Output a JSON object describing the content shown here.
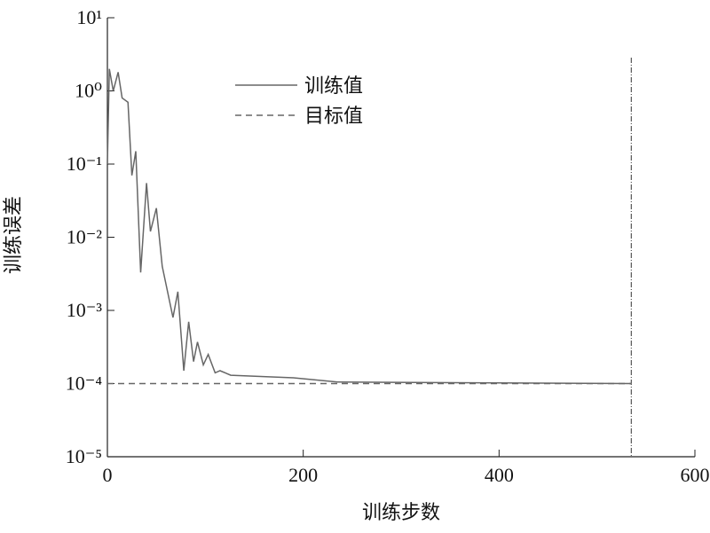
{
  "chart_data": {
    "type": "line",
    "xlabel": "训练步数",
    "ylabel": "训练误差",
    "xlim": [
      0,
      600
    ],
    "xticks": [
      0,
      200,
      400,
      600
    ],
    "ylim": [
      1e-05,
      10
    ],
    "yscale": "log",
    "yticks": [
      {
        "value": 10,
        "label": "10¹"
      },
      {
        "value": 1,
        "label": "10⁰"
      },
      {
        "value": 0.1,
        "label": "10⁻¹"
      },
      {
        "value": 0.01,
        "label": "10⁻²"
      },
      {
        "value": 0.001,
        "label": "10⁻³"
      },
      {
        "value": 0.0001,
        "label": "10⁻⁴"
      },
      {
        "value": 1e-05,
        "label": "10⁻⁵"
      }
    ],
    "legend": "upper center",
    "vlines": [
      535
    ],
    "series": [
      {
        "name": "训练值",
        "color": "#666666",
        "dash": "solid",
        "x": [
          0,
          2,
          6,
          11,
          15,
          21,
          25,
          29,
          34,
          40,
          44,
          50,
          56,
          67,
          72,
          78,
          83,
          88,
          92,
          98,
          103,
          110,
          115,
          126,
          190,
          235,
          535
        ],
        "values": [
          0.1,
          2,
          1.0,
          1.8,
          0.8,
          0.7,
          0.07,
          0.15,
          0.0033,
          0.055,
          0.012,
          0.025,
          0.004,
          0.0008,
          0.0018,
          0.00015,
          0.0007,
          0.0002,
          0.00037,
          0.00018,
          0.00025,
          0.00014,
          0.00015,
          0.00013,
          0.00012,
          0.000105,
          0.0001
        ]
      },
      {
        "name": "目标值",
        "color": "#666666",
        "dash": "dashed",
        "x": [
          0,
          535
        ],
        "values": [
          0.0001,
          0.0001
        ]
      }
    ]
  }
}
